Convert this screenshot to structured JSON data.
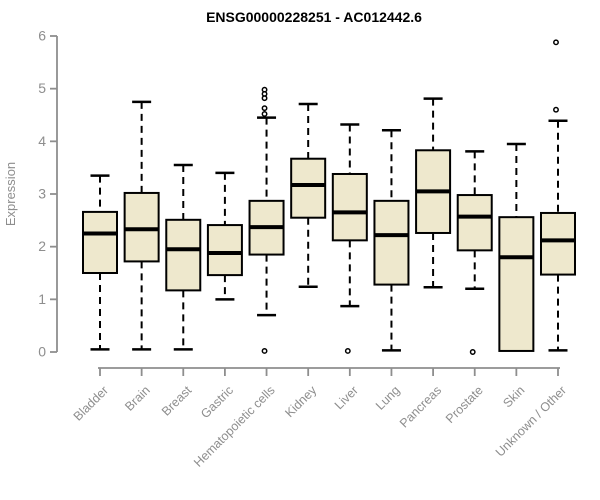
{
  "chart_data": {
    "type": "boxplot",
    "title": "ENSG00000228251 - AC012442.6",
    "ylabel": "Expression",
    "xlabel": "",
    "ylim": [
      0,
      6
    ],
    "yticks": [
      0,
      1,
      2,
      3,
      4,
      5,
      6
    ],
    "grid": false,
    "legend": "none",
    "categories": [
      "Bladder",
      "Brain",
      "Breast",
      "Gastric",
      "Hematopoietic cells",
      "Kidney",
      "Liver",
      "Lung",
      "Pancreas",
      "Prostate",
      "Skin",
      "Unknown / Other"
    ],
    "series": [
      {
        "category": "Bladder",
        "whisker_low": 0.05,
        "q1": 1.5,
        "median": 2.25,
        "q3": 2.66,
        "whisker_high": 3.35,
        "outliers": []
      },
      {
        "category": "Brain",
        "whisker_low": 0.05,
        "q1": 1.72,
        "median": 2.33,
        "q3": 3.02,
        "whisker_high": 4.75,
        "outliers": []
      },
      {
        "category": "Breast",
        "whisker_low": 0.05,
        "q1": 1.17,
        "median": 1.95,
        "q3": 2.51,
        "whisker_high": 3.55,
        "outliers": []
      },
      {
        "category": "Gastric",
        "whisker_low": 1.0,
        "q1": 1.46,
        "median": 1.88,
        "q3": 2.41,
        "whisker_high": 3.4,
        "outliers": []
      },
      {
        "category": "Hematopoietic cells",
        "whisker_low": 0.7,
        "q1": 1.85,
        "median": 2.37,
        "q3": 2.87,
        "whisker_high": 4.45,
        "outliers": [
          4.98,
          4.9,
          4.82,
          4.63,
          4.52,
          0.02
        ]
      },
      {
        "category": "Kidney",
        "whisker_low": 1.24,
        "q1": 2.55,
        "median": 3.17,
        "q3": 3.67,
        "whisker_high": 4.71,
        "outliers": []
      },
      {
        "category": "Liver",
        "whisker_low": 0.87,
        "q1": 2.12,
        "median": 2.65,
        "q3": 3.38,
        "whisker_high": 4.32,
        "outliers": [
          0.02
        ]
      },
      {
        "category": "Lung",
        "whisker_low": 0.03,
        "q1": 1.28,
        "median": 2.22,
        "q3": 2.87,
        "whisker_high": 4.21,
        "outliers": []
      },
      {
        "category": "Pancreas",
        "whisker_low": 1.23,
        "q1": 2.26,
        "median": 3.05,
        "q3": 3.83,
        "whisker_high": 4.81,
        "outliers": []
      },
      {
        "category": "Prostate",
        "whisker_low": 1.2,
        "q1": 1.93,
        "median": 2.57,
        "q3": 2.98,
        "whisker_high": 3.81,
        "outliers": [
          0.0
        ]
      },
      {
        "category": "Skin",
        "whisker_low": 0.02,
        "q1": 0.02,
        "median": 1.8,
        "q3": 2.56,
        "whisker_high": 3.95,
        "outliers": []
      },
      {
        "category": "Unknown / Other",
        "whisker_low": 0.03,
        "q1": 1.47,
        "median": 2.12,
        "q3": 2.64,
        "whisker_high": 4.39,
        "outliers": [
          5.88,
          4.6
        ]
      }
    ],
    "colors": {
      "box_fill": "#EEE8CD",
      "box_stroke": "#000000",
      "median": "#000000",
      "whisker": "#000000",
      "outlier": "#000000",
      "axis": "#8e8e8e",
      "tick_label": "#8e8e8e",
      "title": "#000000",
      "background": "#ffffff"
    }
  }
}
